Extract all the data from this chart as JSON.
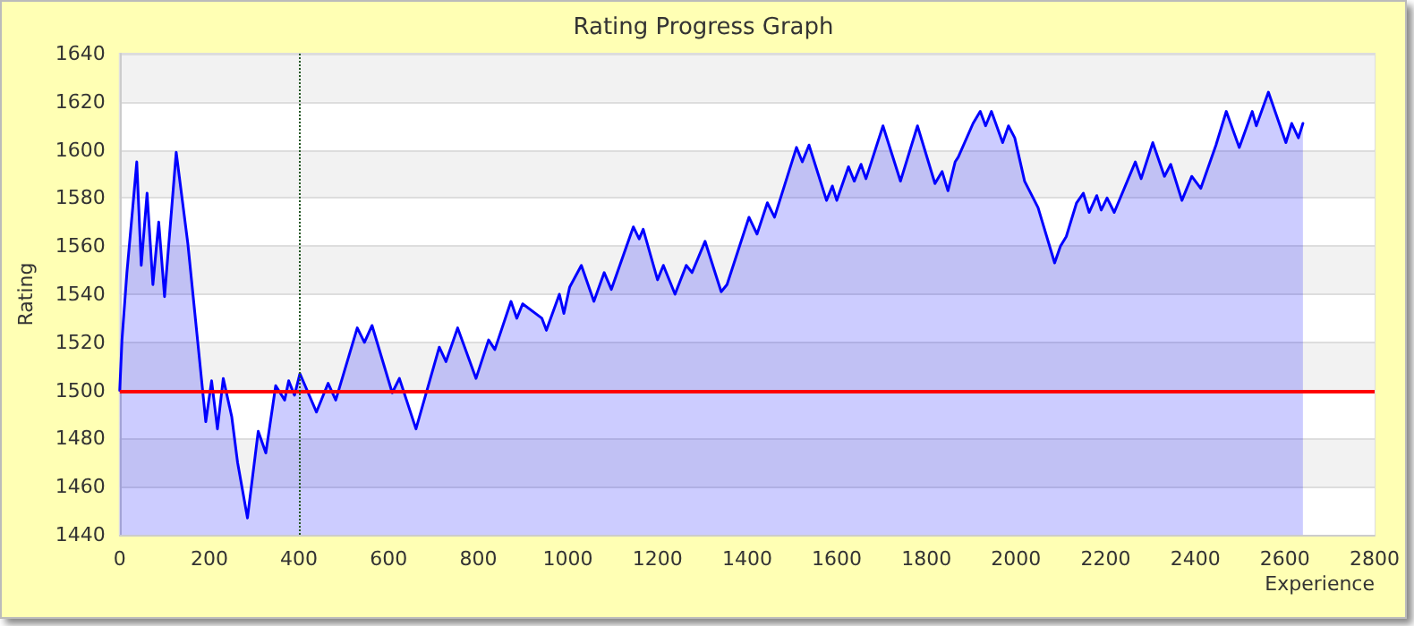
{
  "chart_data": {
    "type": "area",
    "title": "Rating Progress Graph",
    "xlabel": "Experience",
    "ylabel": "Rating",
    "x": [
      0,
      5,
      16,
      29,
      38,
      48,
      61,
      74,
      87,
      100,
      126,
      152,
      172,
      192,
      205,
      218,
      231,
      250,
      263,
      285,
      309,
      326,
      348,
      368,
      377,
      390,
      402,
      439,
      465,
      482,
      530,
      546,
      563,
      608,
      624,
      661,
      713,
      728,
      754,
      795,
      823,
      837,
      873,
      886,
      899,
      942,
      952,
      981,
      991,
      1004,
      1030,
      1058,
      1081,
      1097,
      1146,
      1159,
      1168,
      1200,
      1213,
      1239,
      1264,
      1277,
      1306,
      1342,
      1355,
      1404,
      1422,
      1445,
      1461,
      1510,
      1523,
      1538,
      1577,
      1590,
      1600,
      1626,
      1639,
      1654,
      1665,
      1703,
      1742,
      1780,
      1819,
      1835,
      1848,
      1864,
      1871,
      1904,
      1920,
      1932,
      1945,
      1970,
      1983,
      1997,
      2019,
      2049,
      2086,
      2099,
      2112,
      2135,
      2150,
      2163,
      2180,
      2190,
      2203,
      2219,
      2266,
      2279,
      2305,
      2331,
      2345,
      2370,
      2392,
      2412,
      2446,
      2469,
      2498,
      2527,
      2536,
      2563,
      2602,
      2615,
      2630,
      2640
    ],
    "series": [
      {
        "color": "#0000ff",
        "values": [
          1500,
          1521,
          1549,
          1576,
          1595,
          1552,
          1582,
          1544,
          1570,
          1539,
          1599,
          1561,
          1524,
          1487,
          1504,
          1484,
          1505,
          1489,
          1470,
          1447,
          1483,
          1474,
          1502,
          1496,
          1504,
          1498,
          1507,
          1491,
          1503,
          1496,
          1526,
          1520,
          1527,
          1499,
          1505,
          1484,
          1518,
          1512,
          1526,
          1505,
          1521,
          1517,
          1537,
          1530,
          1536,
          1530,
          1525,
          1540,
          1532,
          1543,
          1552,
          1537,
          1549,
          1542,
          1568,
          1563,
          1567,
          1546,
          1552,
          1540,
          1552,
          1549,
          1562,
          1541,
          1544,
          1572,
          1565,
          1578,
          1572,
          1601,
          1595,
          1602,
          1579,
          1585,
          1579,
          1593,
          1587,
          1594,
          1588,
          1610,
          1587,
          1610,
          1586,
          1591,
          1583,
          1595,
          1597,
          1611,
          1616,
          1610,
          1616,
          1603,
          1610,
          1605,
          1587,
          1576,
          1553,
          1560,
          1564,
          1578,
          1582,
          1574,
          1581,
          1575,
          1580,
          1574,
          1595,
          1588,
          1603,
          1589,
          1594,
          1579,
          1589,
          1584,
          1602,
          1616,
          1601,
          1616,
          1610,
          1624,
          1603,
          1611,
          1605,
          1611
        ]
      }
    ],
    "xlim": [
      0,
      2800
    ],
    "xticks": [
      0,
      200,
      400,
      600,
      800,
      1000,
      1200,
      1400,
      1600,
      1800,
      2000,
      2200,
      2400,
      2600,
      2800
    ],
    "ylim": [
      1440,
      1640
    ],
    "yticks": [
      1440,
      1460,
      1480,
      1500,
      1520,
      1540,
      1560,
      1580,
      1600,
      1620,
      1640
    ],
    "ref_lines": [
      {
        "axis": "y",
        "value": 1500,
        "color": "#ff0000",
        "line_style": "solid"
      },
      {
        "axis": "x",
        "value": 400,
        "color": "#225522",
        "line_style": "dotted"
      }
    ],
    "grid": "y",
    "marker": "none",
    "line_style": "solid"
  }
}
